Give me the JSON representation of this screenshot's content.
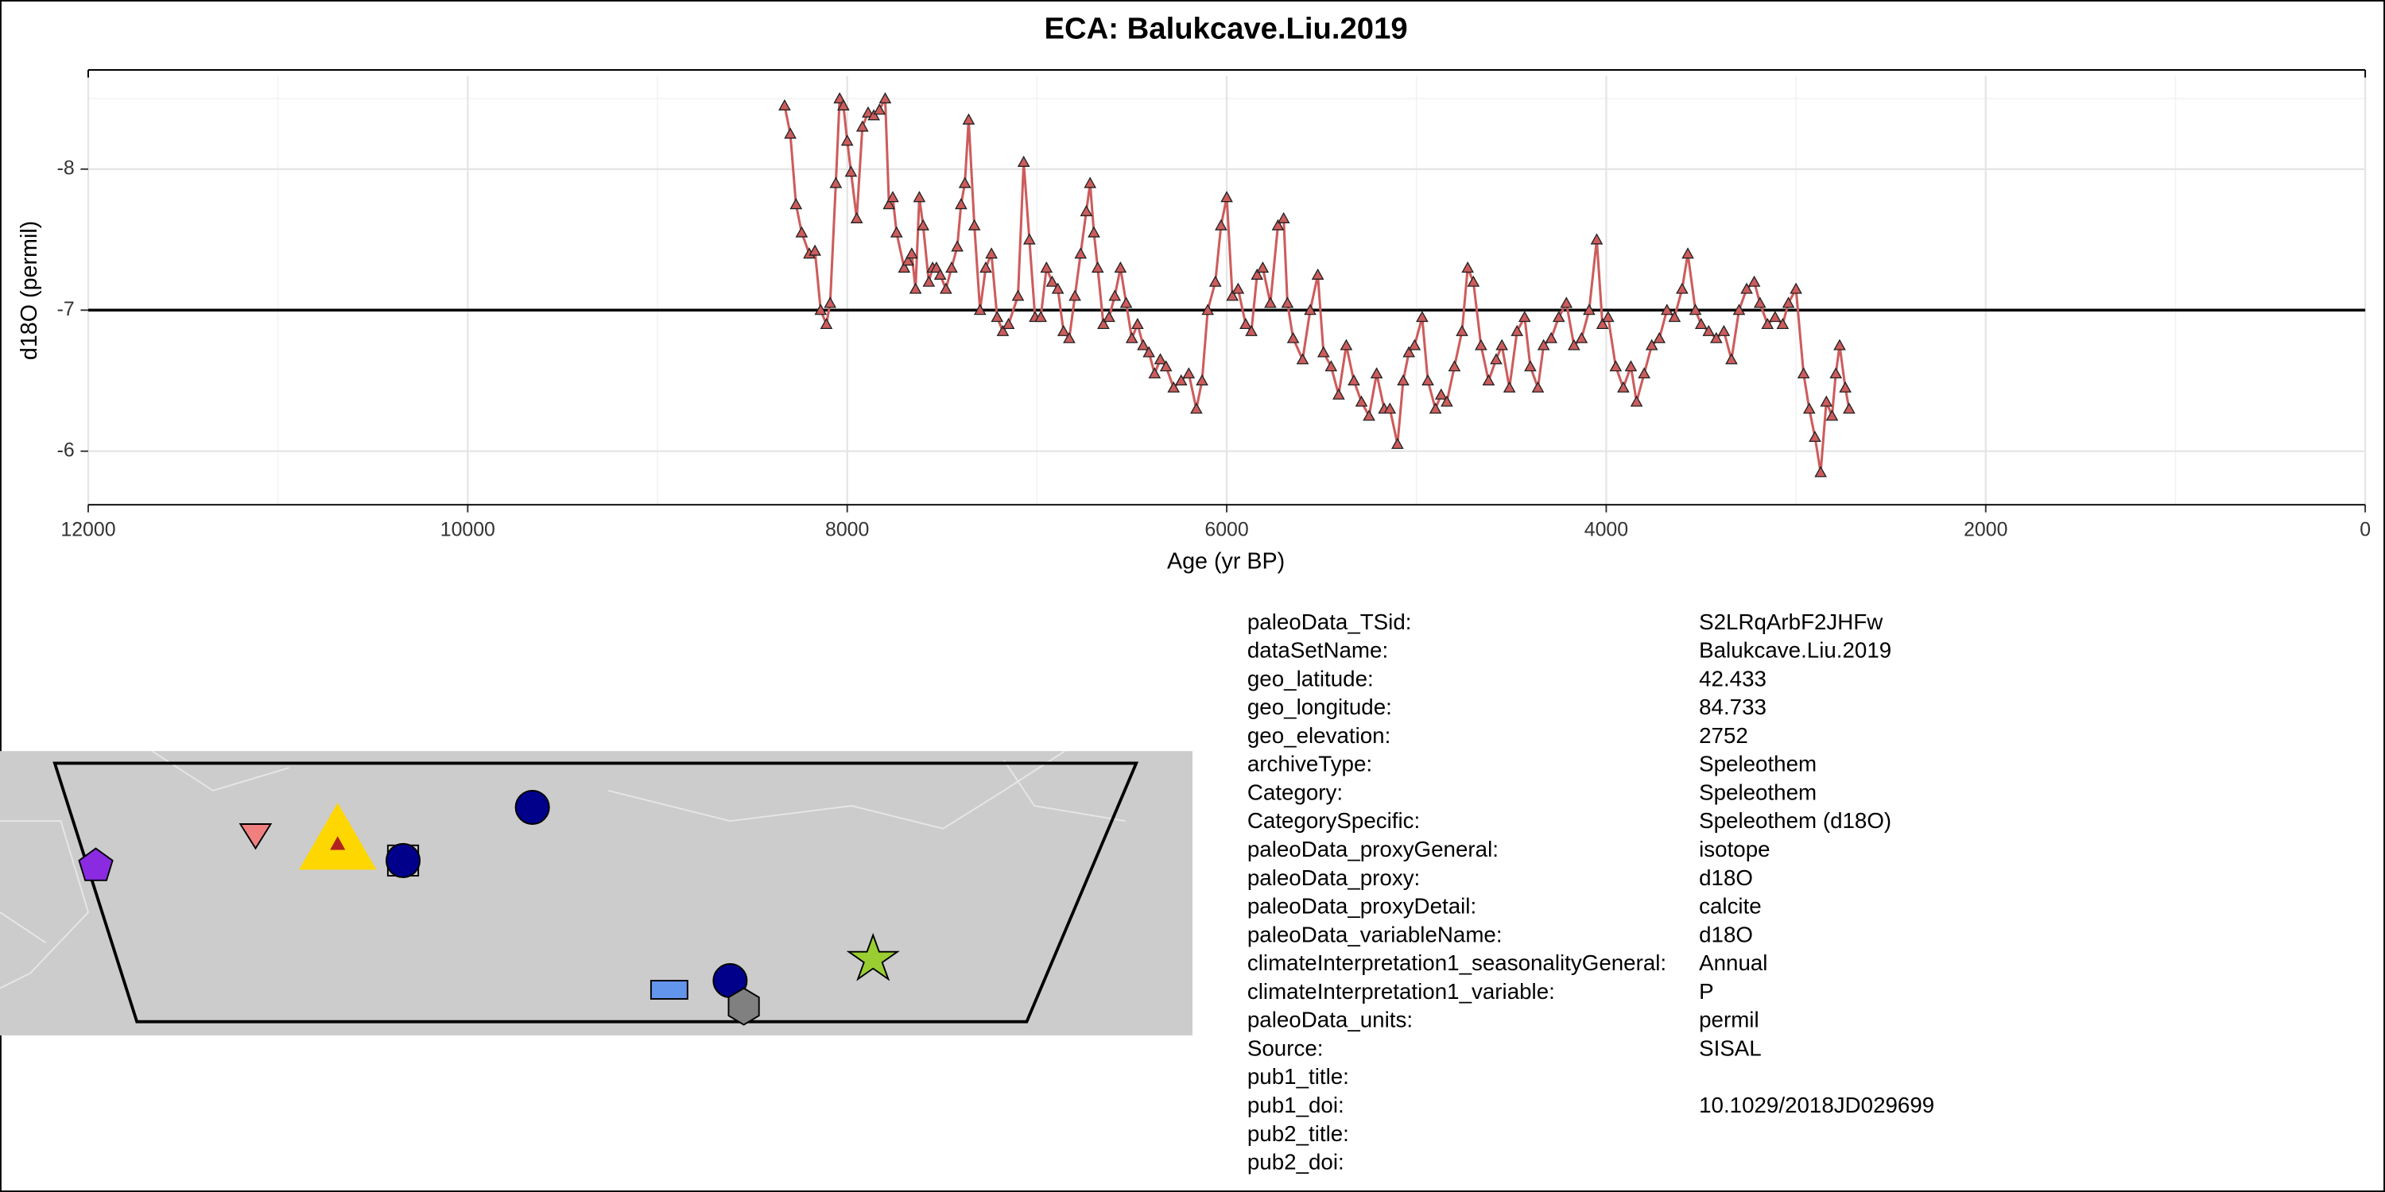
{
  "chart_data": {
    "type": "line",
    "title": "ECA: Balukcave.Liu.2019",
    "xlabel": "Age (yr BP)",
    "ylabel": "d18O (permil)",
    "x": [
      8330,
      8300,
      8270,
      8240,
      8200,
      8170,
      8140,
      8110,
      8090,
      8060,
      8040,
      8020,
      8000,
      7980,
      7950,
      7920,
      7890,
      7860,
      7830,
      7800,
      7780,
      7760,
      7740,
      7700,
      7680,
      7660,
      7640,
      7620,
      7600,
      7570,
      7550,
      7530,
      7510,
      7480,
      7450,
      7420,
      7400,
      7380,
      7360,
      7330,
      7300,
      7270,
      7240,
      7210,
      7180,
      7150,
      7100,
      7070,
      7040,
      7010,
      6980,
      6950,
      6920,
      6890,
      6860,
      6830,
      6800,
      6770,
      6740,
      6720,
      6700,
      6680,
      6650,
      6620,
      6590,
      6560,
      6530,
      6500,
      6470,
      6440,
      6410,
      6380,
      6350,
      6320,
      6280,
      6240,
      6200,
      6160,
      6130,
      6100,
      6060,
      6030,
      6000,
      5970,
      5940,
      5900,
      5870,
      5840,
      5810,
      5770,
      5730,
      5700,
      5680,
      5650,
      5600,
      5560,
      5520,
      5490,
      5450,
      5410,
      5370,
      5330,
      5290,
      5250,
      5210,
      5170,
      5140,
      5100,
      5070,
      5040,
      5010,
      4970,
      4940,
      4900,
      4870,
      4840,
      4800,
      4760,
      4730,
      4700,
      4660,
      4620,
      4580,
      4550,
      4510,
      4470,
      4430,
      4400,
      4360,
      4330,
      4290,
      4250,
      4210,
      4170,
      4130,
      4090,
      4050,
      4020,
      3990,
      3950,
      3910,
      3870,
      3840,
      3800,
      3760,
      3720,
      3680,
      3640,
      3600,
      3570,
      3530,
      3500,
      3460,
      3420,
      3380,
      3340,
      3300,
      3260,
      3220,
      3190,
      3150,
      3110,
      3070,
      3040,
      3000,
      2960,
      2930,
      2900,
      2870,
      2840,
      2810,
      2790,
      2770,
      2740,
      2720
    ],
    "values": [
      -8.45,
      -8.25,
      -7.75,
      -7.55,
      -7.4,
      -7.42,
      -7.0,
      -6.9,
      -7.05,
      -7.9,
      -8.5,
      -8.45,
      -8.2,
      -7.98,
      -7.65,
      -8.3,
      -8.4,
      -8.38,
      -8.42,
      -8.5,
      -7.75,
      -7.8,
      -7.55,
      -7.3,
      -7.35,
      -7.4,
      -7.15,
      -7.8,
      -7.6,
      -7.2,
      -7.3,
      -7.3,
      -7.25,
      -7.15,
      -7.3,
      -7.45,
      -7.75,
      -7.9,
      -8.35,
      -7.6,
      -7.0,
      -7.3,
      -7.4,
      -6.95,
      -6.85,
      -6.9,
      -7.1,
      -8.05,
      -7.5,
      -6.95,
      -6.95,
      -7.3,
      -7.2,
      -7.15,
      -6.85,
      -6.8,
      -7.1,
      -7.4,
      -7.7,
      -7.9,
      -7.55,
      -7.3,
      -6.9,
      -6.95,
      -7.1,
      -7.3,
      -7.05,
      -6.8,
      -6.9,
      -6.75,
      -6.7,
      -6.55,
      -6.65,
      -6.6,
      -6.45,
      -6.5,
      -6.55,
      -6.3,
      -6.5,
      -7.0,
      -7.2,
      -7.6,
      -7.8,
      -7.1,
      -7.15,
      -6.9,
      -6.85,
      -7.25,
      -7.3,
      -7.05,
      -7.6,
      -7.65,
      -7.05,
      -6.8,
      -6.65,
      -7.0,
      -7.25,
      -6.7,
      -6.6,
      -6.4,
      -6.75,
      -6.5,
      -6.35,
      -6.25,
      -6.55,
      -6.3,
      -6.3,
      -6.05,
      -6.5,
      -6.7,
      -6.75,
      -6.95,
      -6.5,
      -6.3,
      -6.4,
      -6.35,
      -6.6,
      -6.85,
      -7.3,
      -7.2,
      -6.75,
      -6.5,
      -6.65,
      -6.75,
      -6.45,
      -6.85,
      -6.95,
      -6.6,
      -6.45,
      -6.75,
      -6.8,
      -6.95,
      -7.05,
      -6.75,
      -6.8,
      -7.0,
      -7.5,
      -6.9,
      -6.95,
      -6.6,
      -6.45,
      -6.6,
      -6.35,
      -6.55,
      -6.75,
      -6.8,
      -7.0,
      -6.95,
      -7.15,
      -7.4,
      -7.0,
      -6.9,
      -6.85,
      -6.8,
      -6.85,
      -6.65,
      -7.0,
      -7.15,
      -7.2,
      -7.05,
      -6.9,
      -6.95,
      -6.9,
      -7.05,
      -7.15,
      -6.55,
      -6.3,
      -6.1,
      -5.85,
      -6.35,
      -6.25,
      -6.55,
      -6.75,
      -6.45,
      -6.3
    ],
    "color": "#cd5c5c",
    "marker": "triangle",
    "hline": -7,
    "xlim": [
      12000,
      0
    ],
    "xticks": [
      12000,
      10000,
      8000,
      6000,
      4000,
      2000,
      0
    ],
    "ylim": [
      -5.62,
      -8.66
    ],
    "yticks": [
      -8,
      -7,
      -6
    ],
    "grid": true
  },
  "info": {
    "rows": [
      [
        "paleoData_TSid:",
        "S2LRqArbF2JHFw"
      ],
      [
        "dataSetName:",
        "Balukcave.Liu.2019"
      ],
      [
        "geo_latitude:",
        "42.433"
      ],
      [
        "geo_longitude:",
        "84.733"
      ],
      [
        "geo_elevation:",
        "2752"
      ],
      [
        "archiveType:",
        "Speleothem"
      ],
      [
        "Category:",
        "Speleothem"
      ],
      [
        "CategorySpecific:",
        "Speleothem (d18O)"
      ],
      [
        "paleoData_proxyGeneral:",
        "isotope"
      ],
      [
        "paleoData_proxy:",
        "d18O"
      ],
      [
        "paleoData_proxyDetail:",
        "calcite"
      ],
      [
        "paleoData_variableName:",
        "d18O"
      ],
      [
        "climateInterpretation1_seasonalityGeneral:",
        "Annual"
      ],
      [
        "climateInterpretation1_variable:",
        "P"
      ],
      [
        "paleoData_units:",
        "permil"
      ],
      [
        "Source:",
        "SISAL"
      ],
      [
        "pub1_title:"
      ],
      [
        "pub1_doi:",
        "10.1029/2018JD029699"
      ],
      [
        "pub2_title:"
      ],
      [
        "pub2_doi:"
      ]
    ]
  }
}
